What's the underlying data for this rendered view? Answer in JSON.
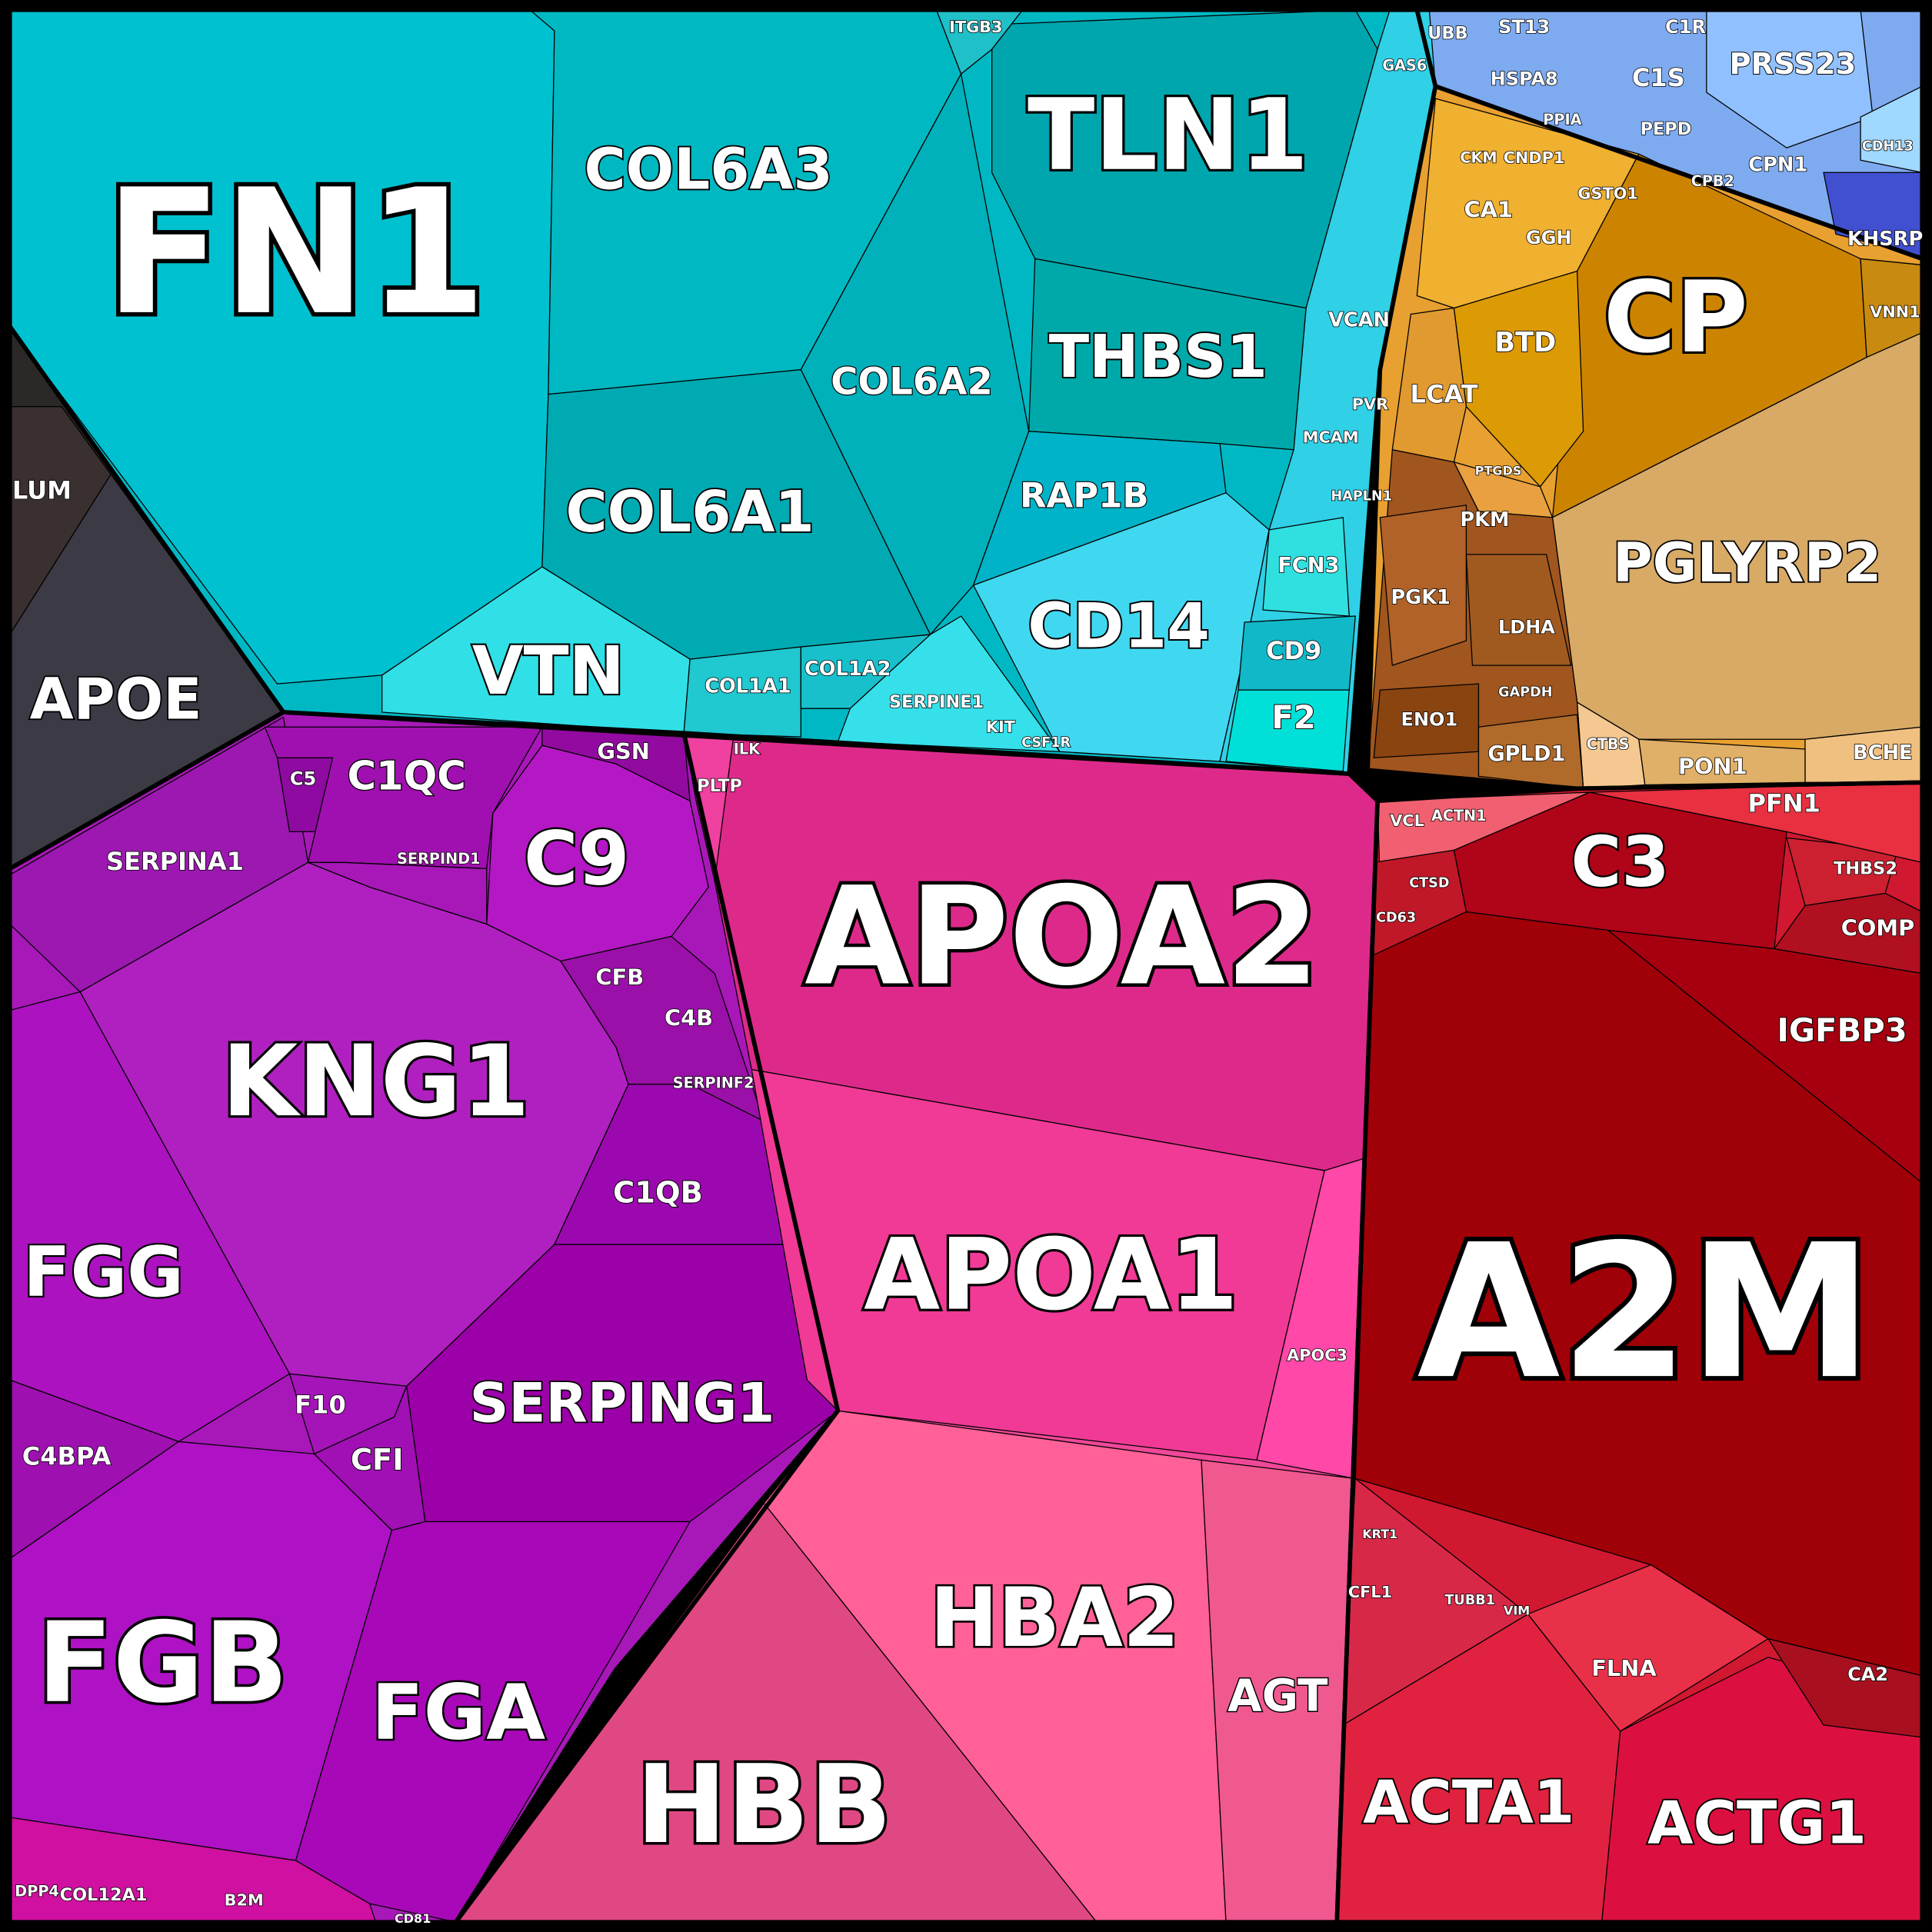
{
  "cells": [
    {
      "label": "FN1"
    },
    {
      "label": "COL6A3"
    },
    {
      "label": "COL6A2"
    },
    {
      "label": "COL6A1"
    },
    {
      "label": "TLN1"
    },
    {
      "label": "THBS1"
    },
    {
      "label": "RAP1B"
    },
    {
      "label": "CD14"
    },
    {
      "label": "VTN"
    },
    {
      "label": "COL1A1"
    },
    {
      "label": "COL1A2"
    },
    {
      "label": "SERPINE1"
    },
    {
      "label": "ITGB3"
    },
    {
      "label": "GAS6"
    },
    {
      "label": "VCAN"
    },
    {
      "label": "PVR"
    },
    {
      "label": "MCAM"
    },
    {
      "label": "HAPLN1"
    },
    {
      "label": "FCN3"
    },
    {
      "label": "CD9"
    },
    {
      "label": "F2"
    },
    {
      "label": "UBB"
    },
    {
      "label": "ST13"
    },
    {
      "label": "HSPA8"
    },
    {
      "label": "PPIA"
    },
    {
      "label": "C1R"
    },
    {
      "label": "C1S"
    },
    {
      "label": "PRSS23"
    },
    {
      "label": "PEPD"
    },
    {
      "label": "CPN1"
    },
    {
      "label": "CPB2"
    },
    {
      "label": "CDH13"
    },
    {
      "label": "KHSRP"
    },
    {
      "label": "CP"
    },
    {
      "label": "VNN1"
    },
    {
      "label": "PGLYRP2"
    },
    {
      "label": "BCHE"
    },
    {
      "label": "PON1"
    },
    {
      "label": "CTBS"
    },
    {
      "label": "BTD"
    },
    {
      "label": "LCAT"
    },
    {
      "label": "PTGDS"
    },
    {
      "label": "CA1"
    },
    {
      "label": "GGH"
    },
    {
      "label": "GSTO1"
    },
    {
      "label": "CNDP1"
    },
    {
      "label": "CKM"
    },
    {
      "label": "PKM"
    },
    {
      "label": "PGK1"
    },
    {
      "label": "LDHA"
    },
    {
      "label": "GAPDH"
    },
    {
      "label": "ENO1"
    },
    {
      "label": "GPLD1"
    },
    {
      "label": "LUM"
    },
    {
      "label": "APOE"
    },
    {
      "label": "SERPINA1"
    },
    {
      "label": "C5"
    },
    {
      "label": "C1QC"
    },
    {
      "label": "GSN"
    },
    {
      "label": "C9"
    },
    {
      "label": "SERPIND1"
    },
    {
      "label": "KNG1"
    },
    {
      "label": "CFB"
    },
    {
      "label": "C4B"
    },
    {
      "label": "SERPINF2"
    },
    {
      "label": "C1QB"
    },
    {
      "label": "FGG"
    },
    {
      "label": "SERPING1"
    },
    {
      "label": "F10"
    },
    {
      "label": "CFI"
    },
    {
      "label": "C4BPA"
    },
    {
      "label": "FGB"
    },
    {
      "label": "FGA"
    },
    {
      "label": "DPP4"
    },
    {
      "label": "COL12A1"
    },
    {
      "label": "B2M"
    },
    {
      "label": "PLTP"
    },
    {
      "label": "ILK"
    },
    {
      "label": "APOA2"
    },
    {
      "label": "APOA1"
    },
    {
      "label": "APOC3"
    },
    {
      "label": "HBA2"
    },
    {
      "label": "AGT"
    },
    {
      "label": "HBB"
    },
    {
      "label": "A2M"
    },
    {
      "label": "IGFBP3"
    },
    {
      "label": "C3"
    },
    {
      "label": "THBS2"
    },
    {
      "label": "COMP"
    },
    {
      "label": "PFN1"
    },
    {
      "label": "VCL"
    },
    {
      "label": "ACTN1"
    },
    {
      "label": "CTSD"
    },
    {
      "label": "CD63"
    },
    {
      "label": "ACTA1"
    },
    {
      "label": "ACTG1"
    },
    {
      "label": "FLNA"
    },
    {
      "label": "KRT1"
    },
    {
      "label": "CFL1"
    },
    {
      "label": "TUBB1"
    },
    {
      "label": "CA2"
    },
    {
      "label": "CD81"
    },
    {
      "label": "VIM"
    },
    {
      "label": "KIT"
    },
    {
      "label": "CSF1R"
    }
  ]
}
